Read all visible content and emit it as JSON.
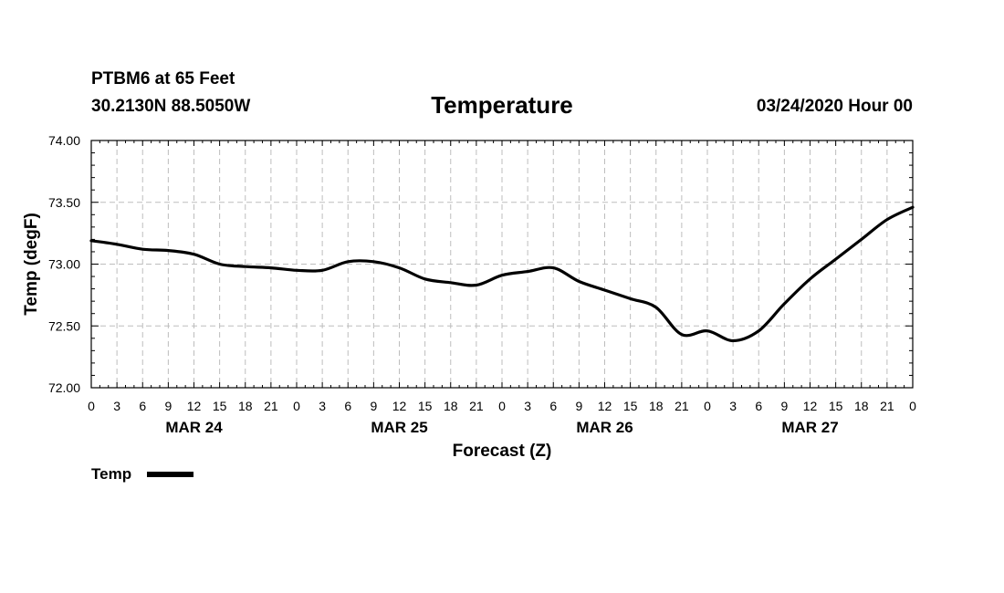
{
  "header": {
    "station": "PTBM6 at 65 Feet",
    "coords": "30.2130N 88.5050W",
    "datetime": "03/24/2020 Hour 00"
  },
  "chart_data": {
    "type": "line",
    "title": "Temperature",
    "xlabel": "Forecast (Z)",
    "ylabel": "Temp (degF)",
    "ylim": [
      72.0,
      74.0
    ],
    "yticks": [
      72.0,
      72.5,
      73.0,
      73.5,
      74.0
    ],
    "ytick_labels": [
      "72.00",
      "72.50",
      "73.00",
      "73.50",
      "74.00"
    ],
    "xlim_hours": [
      0,
      96
    ],
    "xtick_labels": [
      "0",
      "3",
      "6",
      "9",
      "12",
      "15",
      "18",
      "21",
      "0",
      "3",
      "6",
      "9",
      "12",
      "15",
      "18",
      "21",
      "0",
      "3",
      "6",
      "9",
      "12",
      "15",
      "18",
      "21",
      "0",
      "3",
      "6",
      "9",
      "12",
      "15",
      "18",
      "21",
      "0"
    ],
    "day_labels": [
      {
        "label": "MAR 24",
        "hour": 12
      },
      {
        "label": "MAR 25",
        "hour": 36
      },
      {
        "label": "MAR 26",
        "hour": 60
      },
      {
        "label": "MAR 27",
        "hour": 84
      }
    ],
    "grid": true,
    "legend": "bottom-left",
    "series": [
      {
        "name": "Temp",
        "color": "#000000",
        "x": [
          0,
          3,
          6,
          9,
          12,
          15,
          18,
          21,
          24,
          27,
          30,
          33,
          36,
          39,
          42,
          45,
          48,
          51,
          54,
          57,
          60,
          63,
          66,
          69,
          72,
          75,
          78,
          81,
          84,
          87,
          90,
          93,
          96
        ],
        "values": [
          73.19,
          73.16,
          73.12,
          73.11,
          73.08,
          73.0,
          72.98,
          72.97,
          72.95,
          72.95,
          73.02,
          73.02,
          72.97,
          72.88,
          72.85,
          72.83,
          72.91,
          72.94,
          72.97,
          72.86,
          72.79,
          72.72,
          72.65,
          72.43,
          72.46,
          72.38,
          72.46,
          72.68,
          72.88,
          73.04,
          73.2,
          73.36,
          73.46
        ]
      }
    ]
  }
}
